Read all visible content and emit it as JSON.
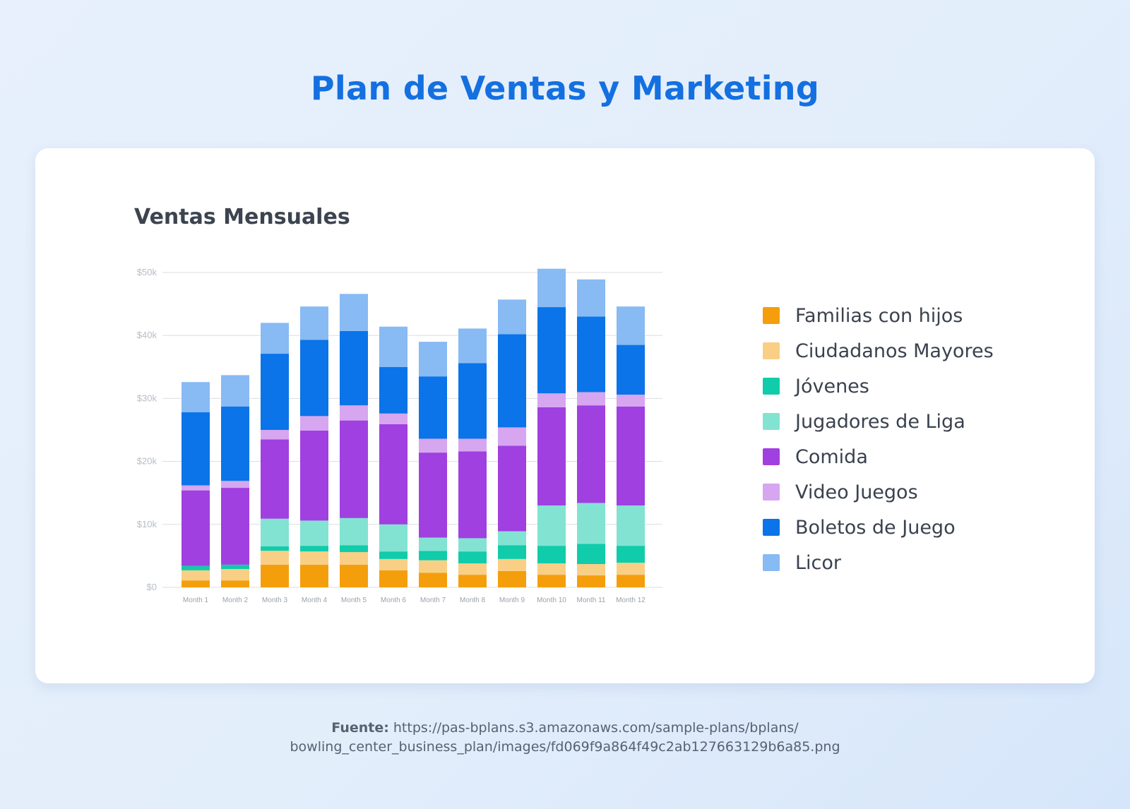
{
  "page": {
    "title": "Plan de Ventas y Marketing",
    "source_label": "Fuente:",
    "source_url_line1": "https://pas-bplans.s3.amazonaws.com/sample-plans/bplans/",
    "source_url_line2": "bowling_center_business_plan/images/fd069f9a864f49c2ab127663129b6a85.png"
  },
  "chart_data": {
    "type": "bar",
    "stacked": true,
    "title": "Ventas Mensuales",
    "xlabel": "",
    "ylabel": "",
    "ylim": [
      0,
      50000
    ],
    "yticks": [
      0,
      10000,
      20000,
      30000,
      40000,
      50000
    ],
    "ytick_labels": [
      "$0",
      "$10k",
      "$20k",
      "$30k",
      "$40k",
      "$50k"
    ],
    "grid": true,
    "legend_position": "right",
    "categories": [
      "Month 1",
      "Month 2",
      "Month 3",
      "Month 4",
      "Month 5",
      "Month 6",
      "Month 7",
      "Month 8",
      "Month 9",
      "Month 10",
      "Month 11",
      "Month 12"
    ],
    "series": [
      {
        "name": "Familias con hijos",
        "color": "#f59e0b",
        "values": [
          1100,
          1100,
          3600,
          3600,
          3600,
          2700,
          2300,
          2000,
          2600,
          2000,
          1900,
          2000
        ]
      },
      {
        "name": "Ciudadanos Mayores",
        "color": "#f8cf85",
        "values": [
          1600,
          1800,
          2200,
          2100,
          2000,
          1800,
          2000,
          1800,
          1900,
          1800,
          1800,
          1900
        ]
      },
      {
        "name": "Jóvenes",
        "color": "#10ccaa",
        "values": [
          700,
          700,
          700,
          900,
          1100,
          1200,
          1500,
          1900,
          2200,
          2800,
          3200,
          2700
        ]
      },
      {
        "name": "Jugadores de Liga",
        "color": "#82e3d2",
        "values": [
          0,
          0,
          4400,
          4000,
          4300,
          4300,
          2100,
          2100,
          2200,
          6400,
          6500,
          6400
        ]
      },
      {
        "name": "Comida",
        "color": "#a040e0",
        "values": [
          12000,
          12200,
          12600,
          14300,
          15500,
          15900,
          13500,
          13800,
          13600,
          15600,
          15500,
          15700
        ]
      },
      {
        "name": "Video Juegos",
        "color": "#d6a6f0",
        "values": [
          800,
          1100,
          1500,
          2300,
          2400,
          1700,
          2200,
          2000,
          2900,
          2200,
          2100,
          1900
        ]
      },
      {
        "name": "Boletos de Juego",
        "color": "#0a74e8",
        "values": [
          11600,
          11800,
          12100,
          12100,
          11800,
          7400,
          9900,
          12000,
          14800,
          13700,
          12000,
          7900
        ]
      },
      {
        "name": "Licor",
        "color": "#88baf4",
        "values": [
          4800,
          5000,
          4900,
          5300,
          5900,
          6400,
          5500,
          5500,
          5500,
          6100,
          5900,
          6100
        ]
      }
    ]
  }
}
